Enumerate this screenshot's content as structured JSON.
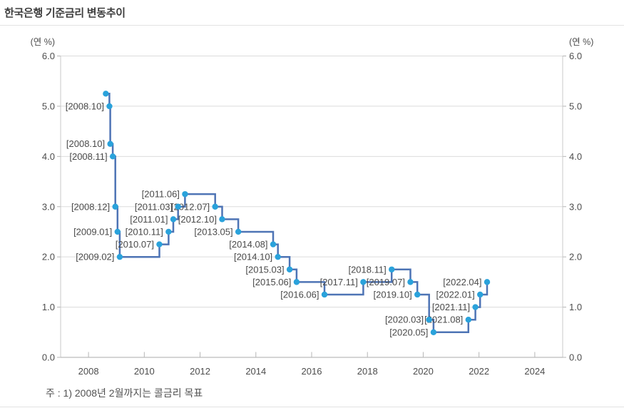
{
  "header": {
    "title": "한국은행 기준금리 변동추이"
  },
  "footnote": {
    "text": "주 : 1) 2008년 2월까지는 콜금리 목표"
  },
  "chart_data": {
    "type": "line",
    "step_mode": "step-after",
    "title": "한국은행 기준금리 변동추이",
    "series_name": "한국은행 기준금리",
    "unit_label_left": "(연 %)",
    "unit_label_right": "(연 %)",
    "xlabel": "",
    "ylabel": "(연 %)",
    "xlim": [
      2007,
      2025
    ],
    "ylim": [
      0,
      6
    ],
    "grid": "horizontal",
    "legend": "none",
    "x_tick_years": [
      "2008",
      "2010",
      "2012",
      "2014",
      "2016",
      "2018",
      "2020",
      "2022",
      "2024"
    ],
    "y_tick_labels": [
      "0.0",
      "1.0",
      "2.0",
      "3.0",
      "4.0",
      "5.0",
      "6.0"
    ],
    "points": [
      {
        "x": 2008.62,
        "y": 5.25,
        "label": ""
      },
      {
        "x": 2008.75,
        "y": 5.0,
        "label": "[2008.10]"
      },
      {
        "x": 2008.78,
        "y": 4.25,
        "label": "[2008.10]"
      },
      {
        "x": 2008.87,
        "y": 4.0,
        "label": "[2008.11]"
      },
      {
        "x": 2008.96,
        "y": 3.0,
        "label": "[2008.12]"
      },
      {
        "x": 2009.04,
        "y": 2.5,
        "label": "[2009.01]"
      },
      {
        "x": 2009.12,
        "y": 2.0,
        "label": "[2009.02]"
      },
      {
        "x": 2010.54,
        "y": 2.25,
        "label": "[2010.07]"
      },
      {
        "x": 2010.87,
        "y": 2.5,
        "label": "[2010.11]"
      },
      {
        "x": 2011.04,
        "y": 2.75,
        "label": "[2011.01]"
      },
      {
        "x": 2011.21,
        "y": 3.0,
        "label": "[2011.03]"
      },
      {
        "x": 2011.46,
        "y": 3.25,
        "label": "[2011.06]"
      },
      {
        "x": 2012.54,
        "y": 3.0,
        "label": "[2012.07]"
      },
      {
        "x": 2012.79,
        "y": 2.75,
        "label": "[2012.10]"
      },
      {
        "x": 2013.37,
        "y": 2.5,
        "label": "[2013.05]"
      },
      {
        "x": 2014.62,
        "y": 2.25,
        "label": "[2014.08]"
      },
      {
        "x": 2014.79,
        "y": 2.0,
        "label": "[2014.10]"
      },
      {
        "x": 2015.21,
        "y": 1.75,
        "label": "[2015.03]"
      },
      {
        "x": 2015.46,
        "y": 1.5,
        "label": "[2015.06]"
      },
      {
        "x": 2016.46,
        "y": 1.25,
        "label": "[2016.06]"
      },
      {
        "x": 2017.85,
        "y": 1.5,
        "label": "[2017.11]"
      },
      {
        "x": 2018.87,
        "y": 1.75,
        "label": "[2018.11]"
      },
      {
        "x": 2019.54,
        "y": 1.5,
        "label": "[2019.07]"
      },
      {
        "x": 2019.79,
        "y": 1.25,
        "label": "[2019.10]"
      },
      {
        "x": 2020.21,
        "y": 0.75,
        "label": "[2020.03]"
      },
      {
        "x": 2020.37,
        "y": 0.5,
        "label": "[2020.05]"
      },
      {
        "x": 2021.62,
        "y": 0.75,
        "label": "[2021.08]"
      },
      {
        "x": 2021.87,
        "y": 1.0,
        "label": "[2021.11]"
      },
      {
        "x": 2022.04,
        "y": 1.25,
        "label": "[2022.01]"
      },
      {
        "x": 2022.29,
        "y": 1.5,
        "label": "[2022.04]"
      }
    ],
    "colors": {
      "line": "#4e74b5",
      "marker": "#2aa2db",
      "grid": "#dbdbdb",
      "axis_side": "#c9c9c9",
      "axis_bottom": "#ababab",
      "tick": "#b5b5b5",
      "tick_text": "#4d4d4d",
      "point_label_text": "#4a4a4a"
    }
  }
}
